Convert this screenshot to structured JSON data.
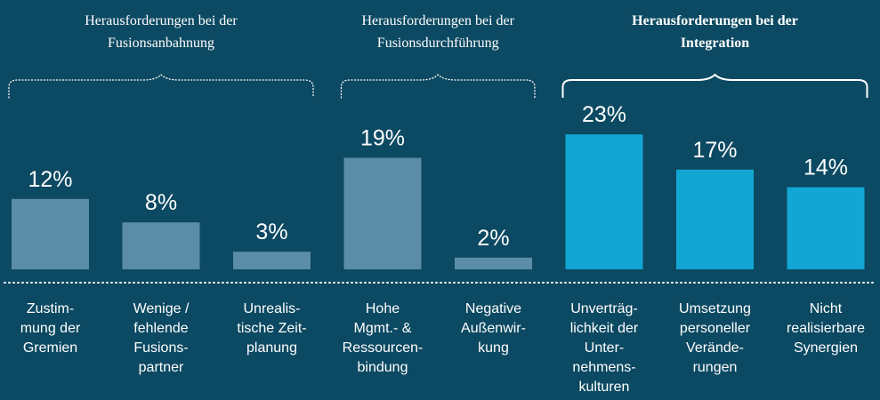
{
  "chart_data": {
    "type": "bar",
    "groups": [
      {
        "title": [
          "Herausforderungen bei der",
          "Fusionsanbahnung"
        ],
        "bold": false,
        "color": "#5b8da6",
        "categories": [
          [
            "Zustim-",
            "mung der",
            "Gremien"
          ],
          [
            "Wenige /",
            "fehlende",
            "Fusions-",
            "partner"
          ],
          [
            "Unrealis-",
            "tische Zeit-",
            "planung"
          ]
        ],
        "values": [
          12,
          8,
          3
        ],
        "value_labels": [
          "12%",
          "8%",
          "3%"
        ]
      },
      {
        "title": [
          "Herausforderungen bei der",
          "Fusionsdurchführung"
        ],
        "bold": false,
        "color": "#5b8da6",
        "categories": [
          [
            "Hohe",
            "Mgmt.- &",
            "Ressourcen-",
            "bindung"
          ],
          [
            "Negative",
            "Außenwir-",
            "kung"
          ]
        ],
        "values": [
          19,
          2
        ],
        "value_labels": [
          "19%",
          "2%"
        ]
      },
      {
        "title": [
          "Herausforderungen bei der",
          "Integration"
        ],
        "bold": true,
        "color": "#12a6d4",
        "categories": [
          [
            "Unverträg-",
            "lichkeit der",
            "Unter-",
            "nehmens-",
            "kulturen"
          ],
          [
            "Umsetzung",
            "personeller",
            "Verände-",
            "rungen"
          ],
          [
            "Nicht",
            "realisierbare",
            "Synergien"
          ]
        ],
        "values": [
          23,
          17,
          14
        ],
        "value_labels": [
          "23%",
          "17%",
          "14%"
        ]
      }
    ]
  }
}
